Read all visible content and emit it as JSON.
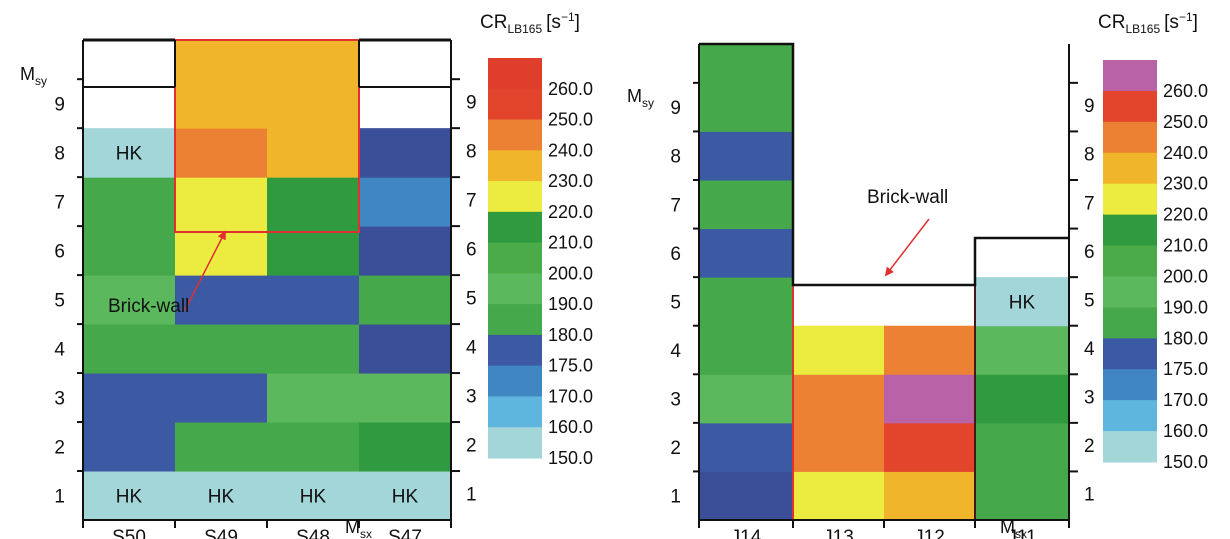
{
  "colorbar": {
    "title_main": "CR",
    "title_sub": "LB165",
    "title_unit": "[s",
    "title_sup": "−1",
    "title_close": "]",
    "levels": [
      "150.0",
      "160.0",
      "170.0",
      "175.0",
      "180.0",
      "190.0",
      "200.0",
      "210.0",
      "220.0",
      "230.0",
      "240.0",
      "250.0",
      "260.0"
    ]
  },
  "colors": {
    "150": "#a3d6d9",
    "160": "#5eb6df",
    "170": "#3f86c2",
    "175": "#3c5aa3",
    "175b": "#3b4e98",
    "180": "#45a84a",
    "190": "#5cb85c",
    "200": "#4bab48",
    "210": "#2f9a3e",
    "220": "#eceb3f",
    "230": "#f0b52a",
    "240": "#ec8134",
    "250": "#e3452c",
    "260": "#e03e2c",
    "260p": "#b962a8",
    "frame": "#111111",
    "redline": "#e03030"
  },
  "chart_data": [
    {
      "type": "heatmap",
      "x_label_main": "M",
      "x_label_sub": "sx",
      "y_label_main": "M",
      "y_label_sub": "sy",
      "x_categories": [
        "S50",
        "S49",
        "S48",
        "S47"
      ],
      "y_categories": [
        "1",
        "2",
        "3",
        "4",
        "5",
        "6",
        "7",
        "8",
        "9"
      ],
      "right_axis_ticks": [
        "1",
        "2",
        "3",
        "4",
        "5",
        "6",
        "7",
        "8",
        "9"
      ],
      "annotation": "Brick-wall",
      "hk_label": "HK",
      "colorbar_levels": [
        150,
        160,
        170,
        175,
        180,
        190,
        200,
        210,
        220,
        230,
        240,
        250,
        260
      ],
      "cells": [
        {
          "col": 0,
          "row": 1,
          "value": 150,
          "label": "HK"
        },
        {
          "col": 1,
          "row": 1,
          "value": 150,
          "label": "HK"
        },
        {
          "col": 2,
          "row": 1,
          "value": 150,
          "label": "HK"
        },
        {
          "col": 3,
          "row": 1,
          "value": 150,
          "label": "HK"
        },
        {
          "col": 0,
          "row": 2,
          "value": 175
        },
        {
          "col": 1,
          "row": 2,
          "value": 180
        },
        {
          "col": 2,
          "row": 2,
          "value": 180
        },
        {
          "col": 3,
          "row": 2,
          "value": 210
        },
        {
          "col": 0,
          "row": 3,
          "value": 175
        },
        {
          "col": 1,
          "row": 3,
          "value": 175
        },
        {
          "col": 2,
          "row": 3,
          "value": 190
        },
        {
          "col": 3,
          "row": 3,
          "value": 190
        },
        {
          "col": 0,
          "row": 4,
          "value": 180
        },
        {
          "col": 1,
          "row": 4,
          "value": 180
        },
        {
          "col": 2,
          "row": 4,
          "value": 180
        },
        {
          "col": 3,
          "row": 4,
          "value": 175
        },
        {
          "col": 0,
          "row": 5,
          "value": 190
        },
        {
          "col": 1,
          "row": 5,
          "value": 175
        },
        {
          "col": 2,
          "row": 5,
          "value": 175
        },
        {
          "col": 3,
          "row": 5,
          "value": 180
        },
        {
          "col": 0,
          "row": 6,
          "value": 180
        },
        {
          "col": 1,
          "row": 6,
          "value": 220
        },
        {
          "col": 2,
          "row": 6,
          "value": 210
        },
        {
          "col": 3,
          "row": 6,
          "value": 175
        },
        {
          "col": 0,
          "row": 7,
          "value": 180
        },
        {
          "col": 1,
          "row": 7,
          "value": 220
        },
        {
          "col": 2,
          "row": 7,
          "value": 210
        },
        {
          "col": 3,
          "row": 7,
          "value": 170
        },
        {
          "col": 0,
          "row": 8,
          "value": 150,
          "label": "HK"
        },
        {
          "col": 1,
          "row": 8,
          "value": 240
        },
        {
          "col": 2,
          "row": 8,
          "value": 230
        },
        {
          "col": 3,
          "row": 8,
          "value": 175
        },
        {
          "col": 1,
          "row": 9,
          "value": 230
        },
        {
          "col": 2,
          "row": 9,
          "value": 230
        }
      ]
    },
    {
      "type": "heatmap",
      "x_label_main": "M",
      "x_label_sub": "sx",
      "y_label_main": "M",
      "y_label_sub": "sy",
      "x_categories": [
        "J14",
        "J13",
        "J12",
        "J11"
      ],
      "y_categories": [
        "1",
        "2",
        "3",
        "4",
        "5",
        "6",
        "7",
        "8",
        "9"
      ],
      "right_axis_ticks": [
        "1",
        "2",
        "3",
        "4",
        "5",
        "6",
        "7",
        "8",
        "9"
      ],
      "annotation": "Brick-wall",
      "hk_label": "HK",
      "colorbar_levels": [
        150,
        160,
        170,
        175,
        180,
        190,
        200,
        210,
        220,
        230,
        240,
        250,
        260
      ],
      "cells": [
        {
          "col": 0,
          "row": 1,
          "value": 175
        },
        {
          "col": 0,
          "row": 2,
          "value": 175
        },
        {
          "col": 0,
          "row": 3,
          "value": 190
        },
        {
          "col": 0,
          "row": 4,
          "value": 180
        },
        {
          "col": 0,
          "row": 5,
          "value": 180
        },
        {
          "col": 0,
          "row": 6,
          "value": 175
        },
        {
          "col": 0,
          "row": 7,
          "value": 180
        },
        {
          "col": 0,
          "row": 8,
          "value": 175
        },
        {
          "col": 0,
          "row": 9,
          "value": 180
        },
        {
          "col": 1,
          "row": 1,
          "value": 220
        },
        {
          "col": 1,
          "row": 2,
          "value": 240
        },
        {
          "col": 1,
          "row": 3,
          "value": 240
        },
        {
          "col": 1,
          "row": 4,
          "value": 220
        },
        {
          "col": 2,
          "row": 1,
          "value": 230
        },
        {
          "col": 2,
          "row": 2,
          "value": 250
        },
        {
          "col": 2,
          "row": 3,
          "value": 265
        },
        {
          "col": 2,
          "row": 4,
          "value": 240
        },
        {
          "col": 3,
          "row": 1,
          "value": 180
        },
        {
          "col": 3,
          "row": 2,
          "value": 180
        },
        {
          "col": 3,
          "row": 3,
          "value": 210
        },
        {
          "col": 3,
          "row": 4,
          "value": 190
        },
        {
          "col": 3,
          "row": 5,
          "value": 150,
          "label": "HK"
        }
      ]
    }
  ]
}
